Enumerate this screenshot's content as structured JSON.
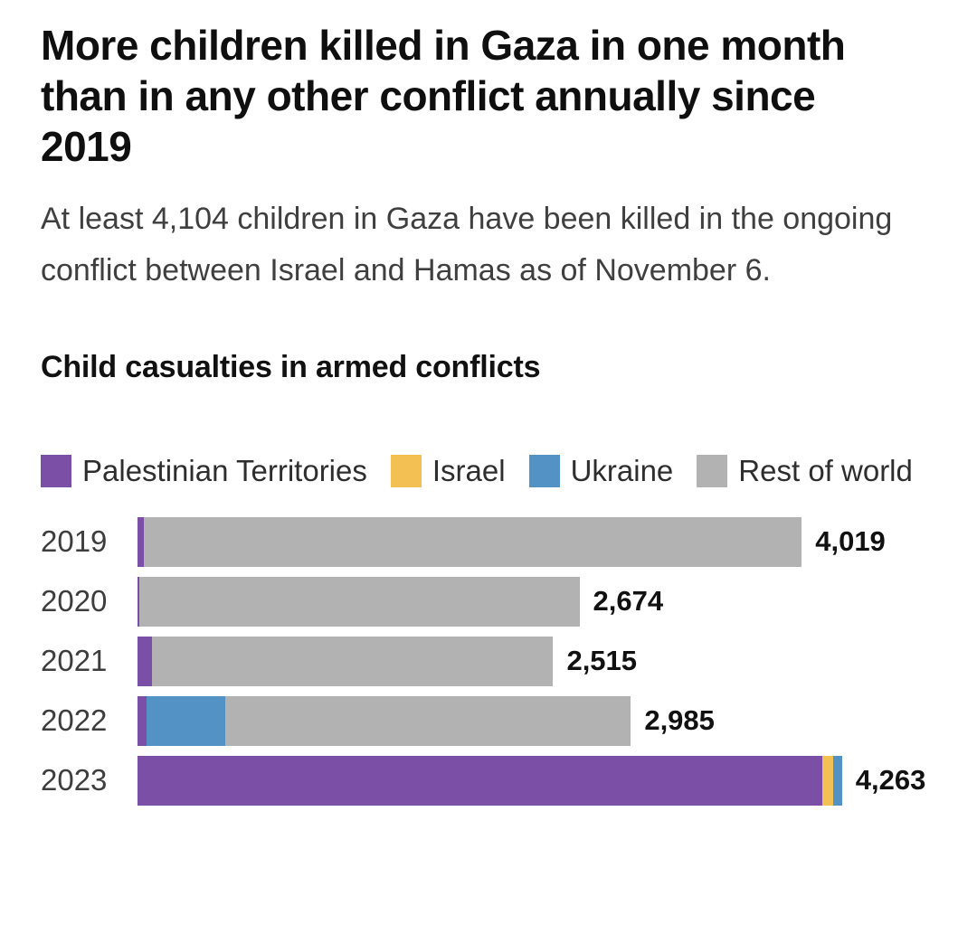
{
  "page": {
    "title": "More children killed in Gaza in one month than in any other conflict annually since 2019",
    "subtitle": "At least 4,104 children in Gaza have been killed in the ongoing conflict between Israel and Hamas as of November 6.",
    "colors": {
      "background": "#ffffff",
      "title_text": "#0f0f0f",
      "subtitle_text": "#3f3f3f",
      "axis_label_text": "#3d3d3d",
      "value_label_text": "#111111"
    }
  },
  "chart_data": {
    "type": "bar",
    "orientation": "horizontal",
    "stacked": true,
    "grid": false,
    "legend_position": "top",
    "value_label_position": "end-of-bar",
    "title": "Child casualties in armed conflicts",
    "categories": [
      "2019",
      "2020",
      "2021",
      "2022",
      "2023"
    ],
    "totals": [
      4019,
      2674,
      2515,
      2985,
      4263
    ],
    "total_labels": [
      "4,019",
      "2,674",
      "2,515",
      "2,985",
      "4,263"
    ],
    "series": [
      {
        "name": "Palestinian Territories",
        "color": "#7a4fa5",
        "values": [
          38,
          10,
          90,
          55,
          4145
        ]
      },
      {
        "name": "Israel",
        "color": "#f3c054",
        "values": [
          0,
          0,
          0,
          0,
          63
        ]
      },
      {
        "name": "Ukraine",
        "color": "#5292c5",
        "values": [
          0,
          0,
          0,
          477,
          55
        ]
      },
      {
        "name": "Rest of world",
        "color": "#b2b2b2",
        "values": [
          3981,
          2664,
          2425,
          2453,
          0
        ]
      }
    ],
    "xlim": [
      0,
      4263
    ],
    "max_bar_fraction_of_track": 0.882
  }
}
